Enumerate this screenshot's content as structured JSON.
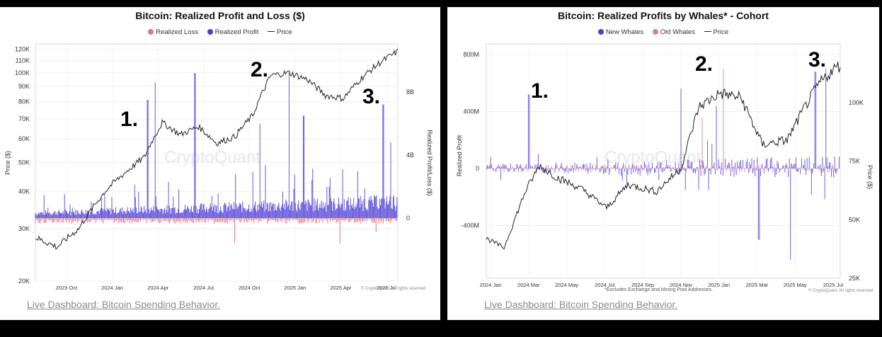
{
  "footer": {
    "left_link": "Live Dashboard: Bitcoin Spending Behavior.",
    "right_link": "Live Dashboard: Bitcoin Spending Behavior."
  },
  "chart_data": [
    {
      "type": "bar",
      "title": "Bitcoin: Realized Profit and Loss ($)",
      "legend": [
        {
          "name": "Realized Loss",
          "color": "#d9777b",
          "marker": "dot"
        },
        {
          "name": "Realized Profit",
          "color": "#4b3bd8",
          "marker": "dot"
        },
        {
          "name": "Price",
          "color": "#222222",
          "marker": "line"
        }
      ],
      "ylabel_left": "Price ($)",
      "ylabel_right": "Realized Profit/Loss ($)",
      "y_left_scale": "log",
      "y_left_ticks": [
        "120K",
        "110K",
        "100K",
        "90K",
        "80K",
        "70K",
        "60K",
        "50K",
        "40K",
        "30K",
        "20K"
      ],
      "y_left_tick_values": [
        120000,
        110000,
        100000,
        90000,
        80000,
        70000,
        60000,
        50000,
        40000,
        30000,
        20000
      ],
      "y_right_ticks": [
        "8B",
        "4B",
        "0"
      ],
      "y_right_tick_values": [
        8000000000,
        4000000000,
        0
      ],
      "x_ticks": [
        "2023 Oct",
        "2024 Jan",
        "2024 Apr",
        "2024 Jul",
        "2024 Oct",
        "2025 Jan",
        "2025 Apr",
        "2025 Jul"
      ],
      "annotations": [
        "1.",
        "2.",
        "3."
      ],
      "watermark": "CryptoQuant",
      "copyright": "© CryptoQuant. All rights reserved",
      "series": [
        {
          "name": "Price",
          "x": [
            0.0,
            0.06,
            0.12,
            0.2,
            0.3,
            0.35,
            0.4,
            0.45,
            0.5,
            0.55,
            0.6,
            0.65,
            0.7,
            0.75,
            0.8,
            0.85,
            0.9,
            0.95,
            1.0
          ],
          "values": [
            28000,
            26000,
            30000,
            41000,
            52000,
            68000,
            62000,
            66000,
            58000,
            61000,
            72000,
            98000,
            100000,
            95000,
            84000,
            82000,
            96000,
            108000,
            118000
          ]
        },
        {
          "name": "Realized Profit",
          "peaks": [
            {
              "x": 0.31,
              "value": 7500000000
            },
            {
              "x": 0.33,
              "value": 8600000000
            },
            {
              "x": 0.44,
              "value": 9200000000
            },
            {
              "x": 0.62,
              "value": 6000000000
            },
            {
              "x": 0.7,
              "value": 9200000000
            },
            {
              "x": 0.74,
              "value": 6500000000
            },
            {
              "x": 0.96,
              "value": 7200000000
            },
            {
              "x": 0.98,
              "value": 4800000000
            }
          ]
        },
        {
          "name": "Realized Loss",
          "troughs": [
            {
              "x": 0.55,
              "value": -1600000000
            },
            {
              "x": 0.84,
              "value": -1600000000
            },
            {
              "x": 0.94,
              "value": -900000000
            }
          ]
        }
      ]
    },
    {
      "type": "bar",
      "title": "Bitcoin: Realized Profits by Whales* - Cohort",
      "legend": [
        {
          "name": "New Whales",
          "color": "#4b3bd8",
          "marker": "dot"
        },
        {
          "name": "Old Whales",
          "color": "#d97b9a",
          "marker": "dot"
        },
        {
          "name": "Price",
          "color": "#222222",
          "marker": "line"
        }
      ],
      "ylabel_left": "Realized Profit",
      "ylabel_right": "Price ($)",
      "y_left_ticks": [
        "800M",
        "400M",
        "0",
        "-400M"
      ],
      "y_left_tick_values": [
        800000000,
        400000000,
        0,
        -400000000
      ],
      "y_right_ticks": [
        "100K",
        "75K",
        "50K",
        "25K"
      ],
      "y_right_tick_values": [
        100000,
        75000,
        50000,
        25000
      ],
      "x_ticks": [
        "2024 Jan",
        "2024 Mar",
        "2024 May",
        "2024 Jul",
        "2024 Sep",
        "2024 Nov",
        "2025 Jan",
        "2025 Mar",
        "2025 May",
        "2025 Jul"
      ],
      "annotations": [
        "1.",
        "2.",
        "3."
      ],
      "footnote": "*Excludes Exchange and Mining Pool Addresses.",
      "watermark": "CryptoQuant",
      "copyright": "© CryptoQuant. All rights reserved",
      "series": [
        {
          "name": "Price",
          "x": [
            0.0,
            0.05,
            0.11,
            0.15,
            0.2,
            0.27,
            0.34,
            0.4,
            0.48,
            0.55,
            0.6,
            0.66,
            0.72,
            0.78,
            0.85,
            0.9,
            0.94,
            0.98,
            1.0
          ],
          "values": [
            42000,
            38000,
            62000,
            73000,
            68000,
            63000,
            55000,
            65000,
            62000,
            72000,
            98000,
            104000,
            102000,
            82000,
            84000,
            98000,
            108000,
            114000,
            116000
          ]
        },
        {
          "name": "New Whales",
          "peaks": [
            {
              "x": 0.12,
              "value": 520000000
            },
            {
              "x": 0.55,
              "value": 560000000
            },
            {
              "x": 0.65,
              "value": 440000000
            },
            {
              "x": 0.93,
              "value": 680000000
            },
            {
              "x": 0.96,
              "value": 700000000
            }
          ],
          "troughs": [
            {
              "x": 0.77,
              "value": -500000000
            },
            {
              "x": 0.86,
              "value": -640000000
            }
          ]
        },
        {
          "name": "Old Whales",
          "peaks": [
            {
              "x": 0.67,
              "value": 700000000
            },
            {
              "x": 0.61,
              "value": 360000000
            }
          ]
        }
      ]
    }
  ]
}
